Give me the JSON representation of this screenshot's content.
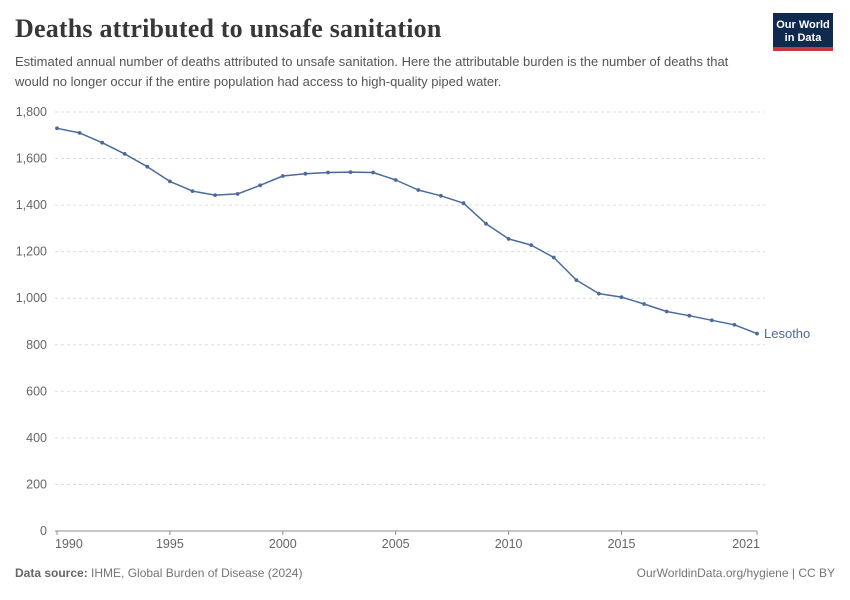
{
  "header": {
    "title": "Deaths attributed to unsafe sanitation",
    "subtitle": "Estimated annual number of deaths attributed to unsafe sanitation. Here the attributable burden is the number of deaths that would no longer occur if the entire population had access to high-quality piped water.",
    "logo": {
      "line1": "Our World",
      "line2": "in Data",
      "bg_color": "#0f2a4e",
      "bar_color": "#c5383c"
    }
  },
  "chart_data": {
    "type": "line",
    "title": "Deaths attributed to unsafe sanitation",
    "entity_label": "Lesotho",
    "x": [
      1990,
      1991,
      1992,
      1993,
      1994,
      1995,
      1996,
      1997,
      1998,
      1999,
      2000,
      2001,
      2002,
      2003,
      2004,
      2005,
      2006,
      2007,
      2008,
      2009,
      2010,
      2011,
      2012,
      2013,
      2014,
      2015,
      2016,
      2017,
      2018,
      2019,
      2020,
      2021
    ],
    "series": [
      {
        "name": "Lesotho",
        "color": "#4c6a9c",
        "values": [
          1730,
          1710,
          1668,
          1620,
          1565,
          1502,
          1460,
          1443,
          1448,
          1485,
          1525,
          1535,
          1540,
          1542,
          1540,
          1508,
          1465,
          1440,
          1408,
          1320,
          1255,
          1228,
          1175,
          1078,
          1020,
          1005,
          975,
          943,
          925,
          905,
          886,
          848
        ]
      }
    ],
    "xlim": [
      1990,
      2021
    ],
    "ylim": [
      0,
      1800
    ],
    "x_ticks": [
      1990,
      1995,
      2000,
      2005,
      2010,
      2015,
      2021
    ],
    "x_tick_labels": [
      "1990",
      "1995",
      "2000",
      "2005",
      "2010",
      "2015",
      "2021"
    ],
    "y_ticks": [
      0,
      200,
      400,
      600,
      800,
      1000,
      1200,
      1400,
      1600,
      1800
    ],
    "y_tick_labels": [
      "0",
      "200",
      "400",
      "600",
      "800",
      "1,000",
      "1,200",
      "1,400",
      "1,600",
      "1,800"
    ],
    "grid": "horizontal-dashed",
    "legend_position": "end-of-line-label"
  },
  "footer": {
    "source_label": "Data source:",
    "source_text": " IHME, Global Burden of Disease (2024)",
    "credit": "OurWorldinData.org/hygiene | CC BY"
  },
  "colors": {
    "line": "#4c6a9c",
    "grid": "#dedede",
    "axis": "#8f8f8f",
    "tick_text": "#666666",
    "entity_label": "#4c6a9c"
  }
}
